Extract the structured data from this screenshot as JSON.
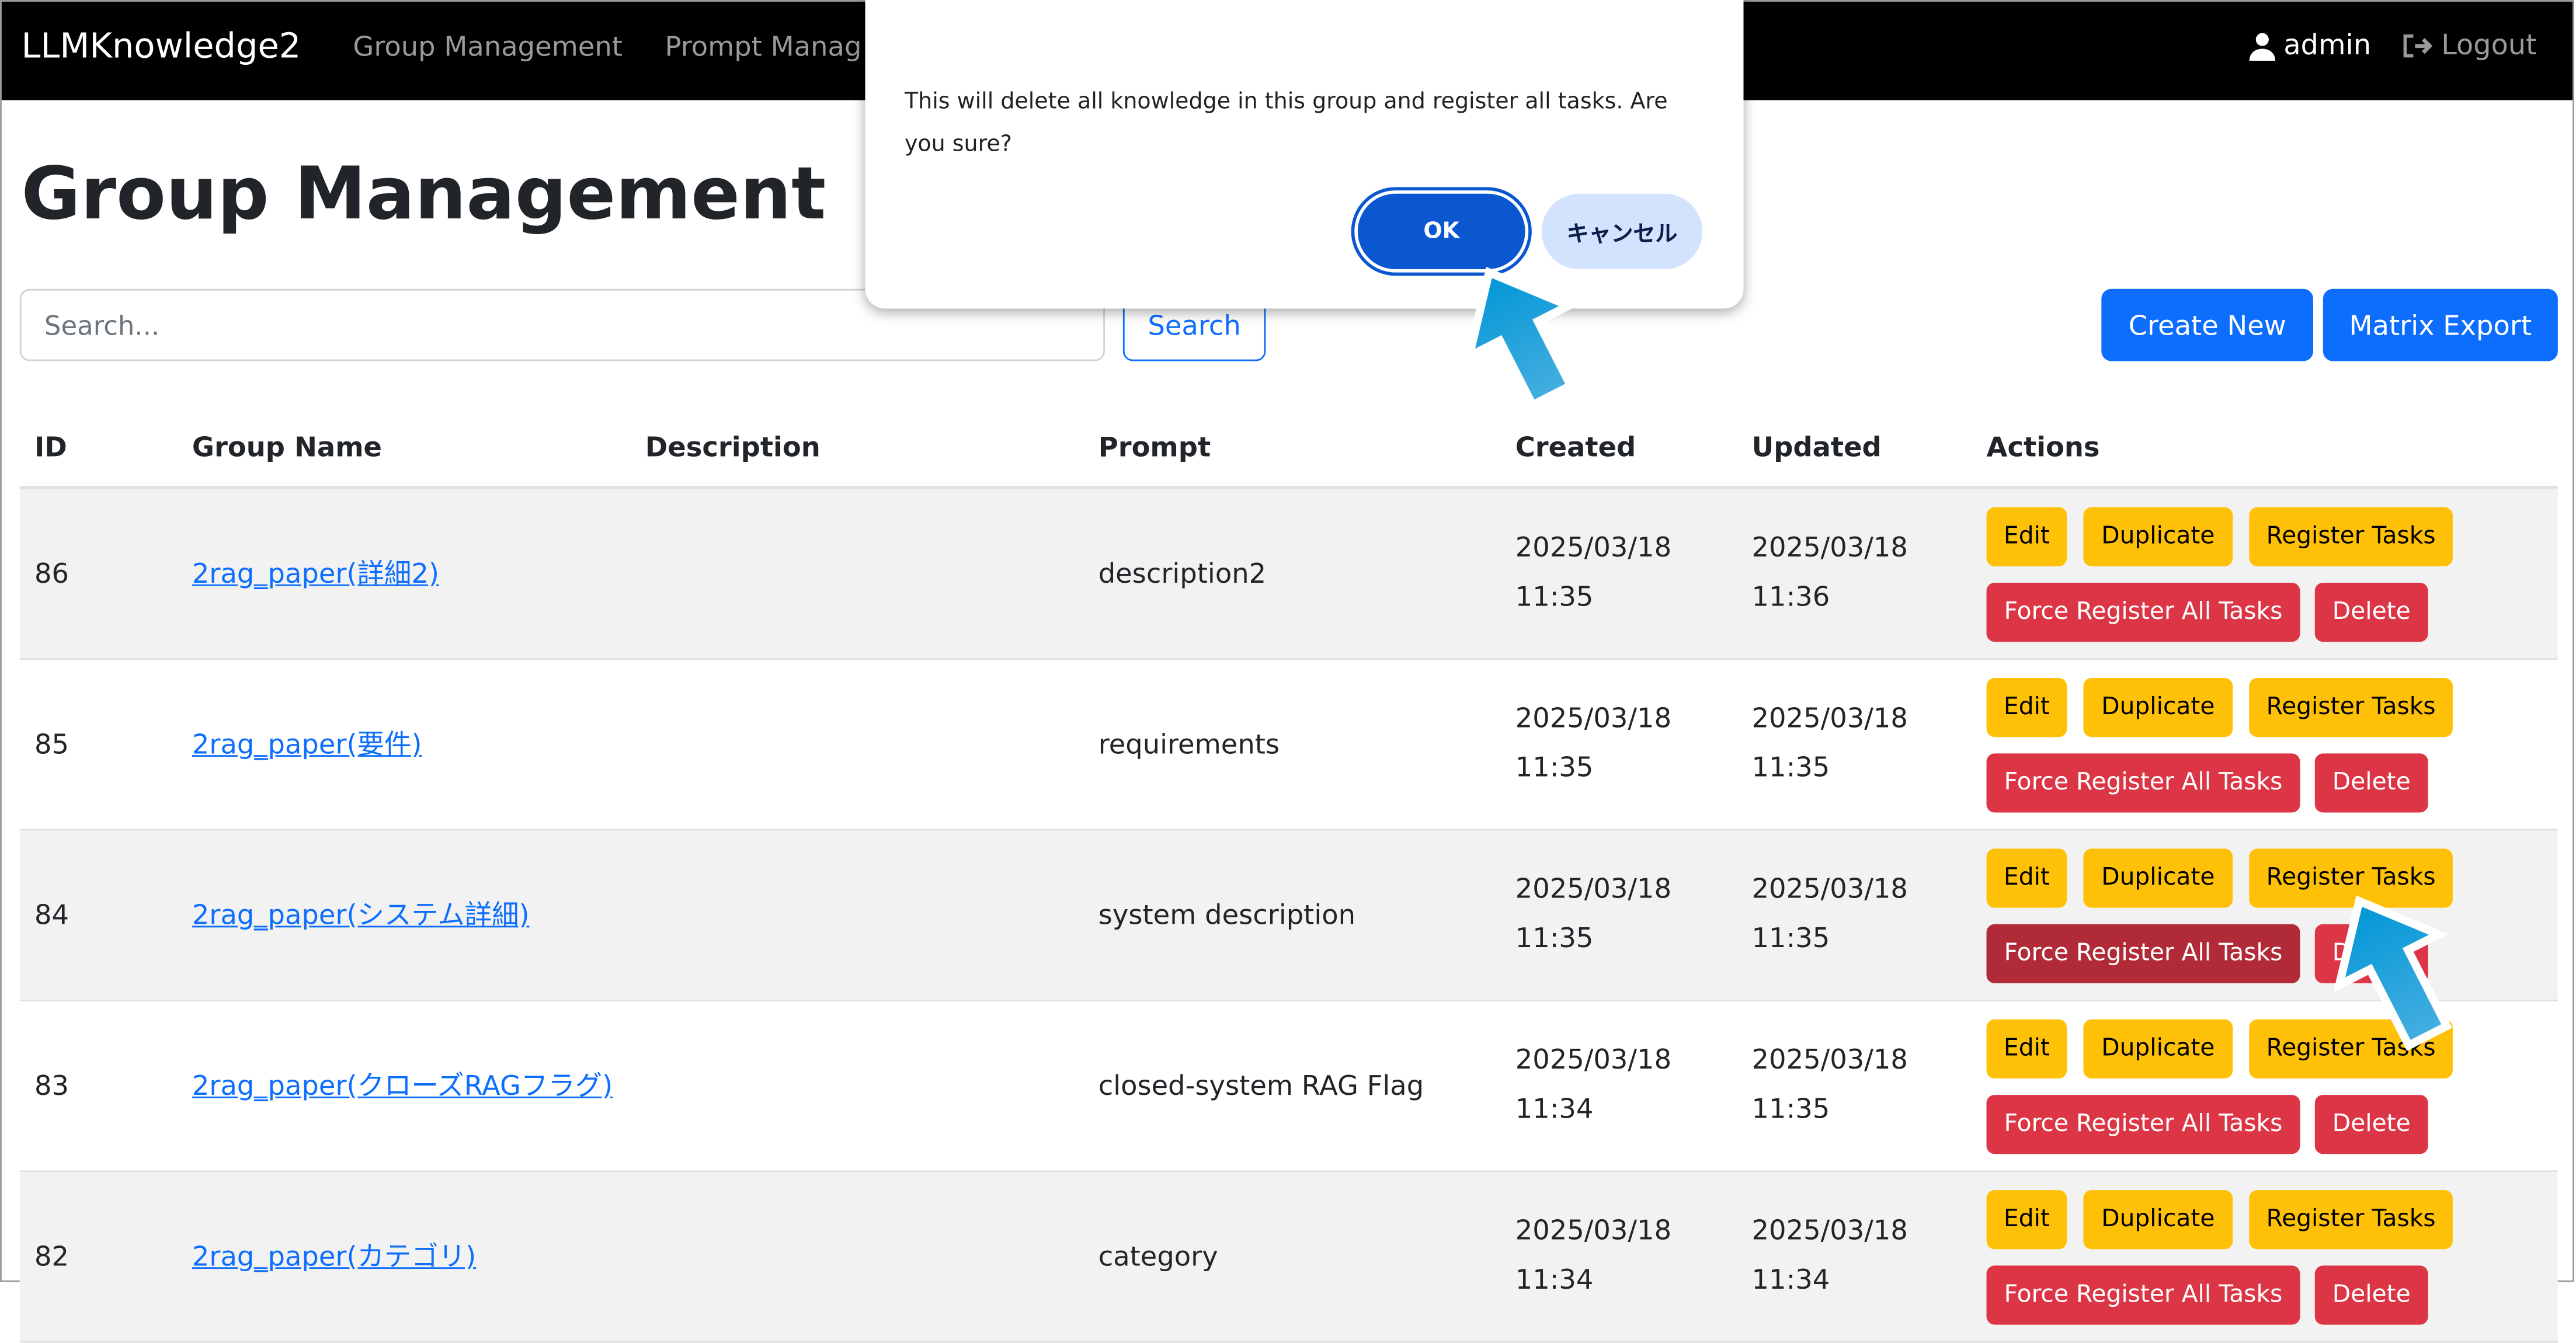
{
  "navbar": {
    "brand": "LLMKnowledge2",
    "links": [
      "Group Management",
      "Prompt Manag"
    ],
    "user": "admin",
    "logout": "Logout"
  },
  "page": {
    "title": "Group Management",
    "search_placeholder": "Search...",
    "search_button": "Search",
    "create_button": "Create New",
    "export_button": "Matrix Export"
  },
  "table": {
    "headers": [
      "ID",
      "Group Name",
      "Description",
      "Prompt",
      "Created",
      "Updated",
      "Actions"
    ],
    "actions": {
      "edit": "Edit",
      "duplicate": "Duplicate",
      "register": "Register Tasks",
      "force": "Force Register All Tasks",
      "delete": "Delete"
    },
    "rows": [
      {
        "id": "86",
        "name": "2rag_paper(詳細2)",
        "description": "",
        "prompt": "description2",
        "created_date": "2025/03/18",
        "created_time": "11:35",
        "updated_date": "2025/03/18",
        "updated_time": "11:36"
      },
      {
        "id": "85",
        "name": "2rag_paper(要件)",
        "description": "",
        "prompt": "requirements",
        "created_date": "2025/03/18",
        "created_time": "11:35",
        "updated_date": "2025/03/18",
        "updated_time": "11:35"
      },
      {
        "id": "84",
        "name": "2rag_paper(システム詳細)",
        "description": "",
        "prompt": "system description",
        "created_date": "2025/03/18",
        "created_time": "11:35",
        "updated_date": "2025/03/18",
        "updated_time": "11:35"
      },
      {
        "id": "83",
        "name": "2rag_paper(クローズRAGフラグ)",
        "description": "",
        "prompt": "closed-system RAG Flag",
        "created_date": "2025/03/18",
        "created_time": "11:34",
        "updated_date": "2025/03/18",
        "updated_time": "11:35"
      },
      {
        "id": "82",
        "name": "2rag_paper(カテゴリ)",
        "description": "",
        "prompt": "category",
        "created_date": "2025/03/18",
        "created_time": "11:34",
        "updated_date": "2025/03/18",
        "updated_time": "11:34"
      }
    ]
  },
  "dialog": {
    "message": "This will delete all knowledge in this group and register all tasks. Are you sure?",
    "ok": "OK",
    "cancel": "キャンセル"
  },
  "colors": {
    "warning": "#ffc107",
    "danger": "#dc3545",
    "primary": "#0d6efd",
    "dialog_ok": "#0b57d0",
    "annotation_arrow": "#069ad6"
  }
}
